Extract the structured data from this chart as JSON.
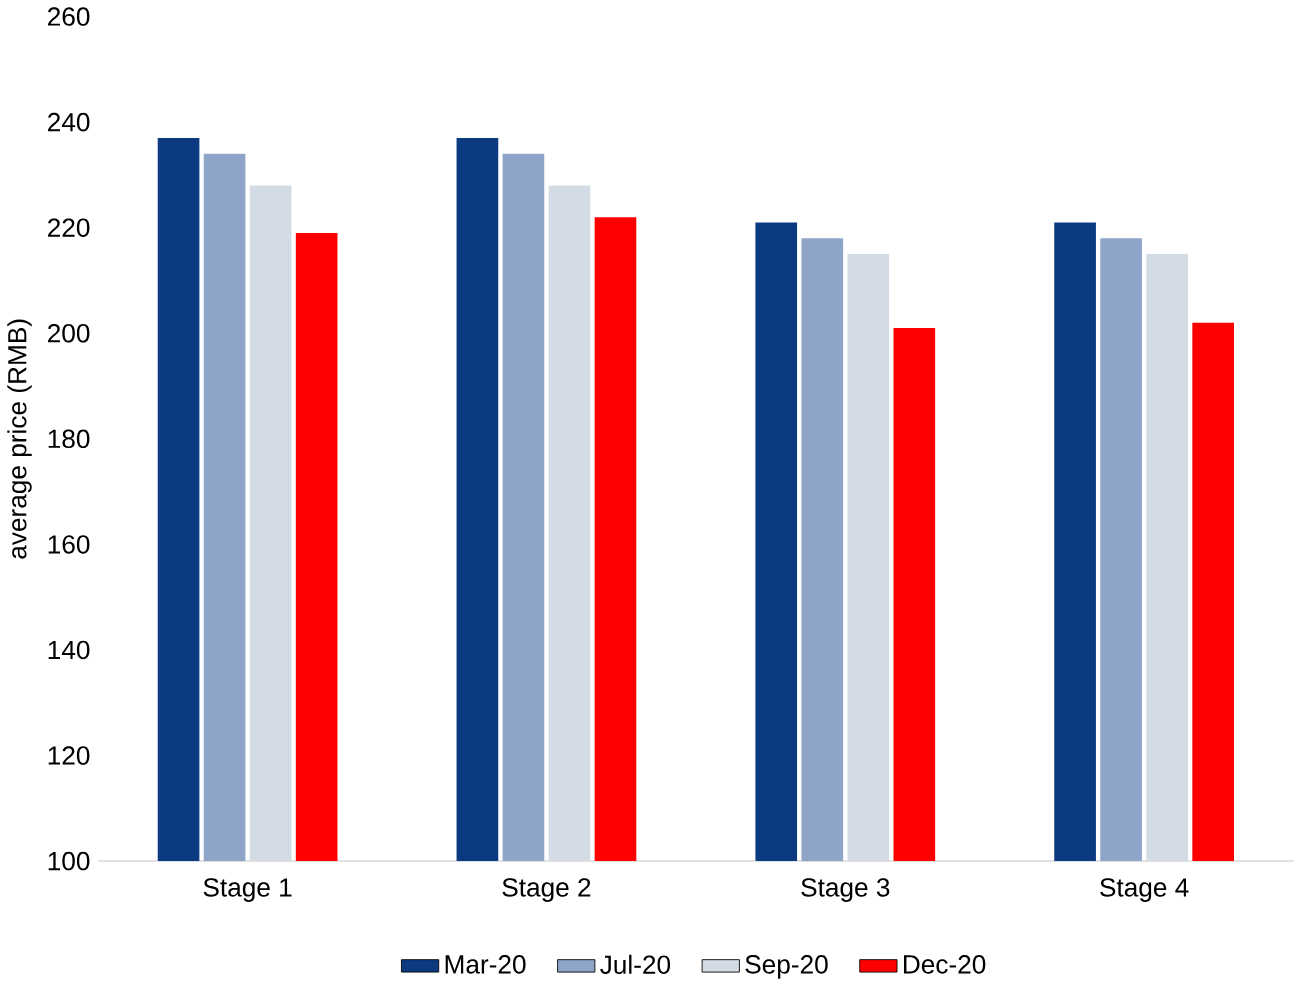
{
  "chart_data": {
    "type": "bar",
    "ylabel": "average price (RMB)",
    "categories": [
      "Stage 1",
      "Stage 2",
      "Stage 3",
      "Stage 4"
    ],
    "series": [
      {
        "name": "Mar-20",
        "color": "#0b3a80",
        "values": [
          237,
          237,
          221,
          221
        ]
      },
      {
        "name": "Jul-20",
        "color": "#8ea5c9",
        "values": [
          234,
          234,
          218,
          218
        ]
      },
      {
        "name": "Sep-20",
        "color": "#d3dce4",
        "values": [
          228,
          228,
          215,
          215
        ]
      },
      {
        "name": "Dec-20",
        "color": "#ff0000",
        "values": [
          219,
          222,
          201,
          202
        ]
      }
    ],
    "ylim": [
      100,
      260
    ],
    "yticks": [
      100,
      120,
      140,
      160,
      180,
      200,
      220,
      240,
      260
    ],
    "grid": false,
    "legend": "bottom"
  }
}
